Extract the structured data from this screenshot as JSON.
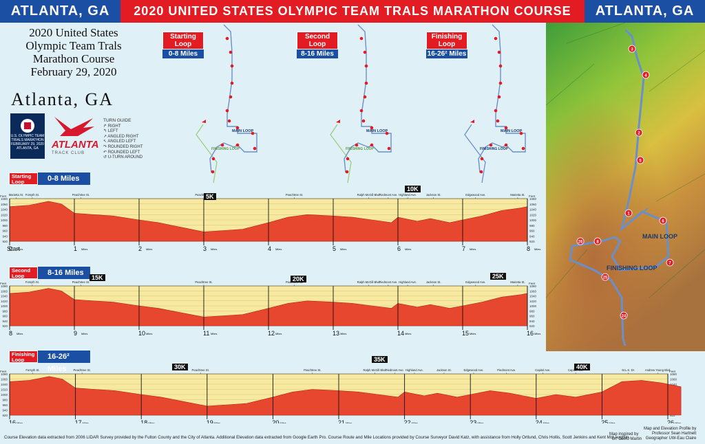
{
  "header": {
    "left": "ATLANTA, GA",
    "center": "2020 UNITED STATES OLYMPIC TEAM TRALS MARATHON COURSE",
    "right": "ATLANTA, GA"
  },
  "title_block": {
    "line1": "2020 United States",
    "line2": "Olympic Team Trals",
    "line3": "Marathon Course",
    "line4": "February 29, 2020"
  },
  "city": "Atlanta, GA",
  "logos": {
    "usopc": "U.S. OLYMPIC TEAM TRIALS MARATHON FEBRUARY 29, 2020 ATLANTA, GA",
    "atc_name": "ATLANTA",
    "atc_sub": "TRACK CLUB"
  },
  "turn_guide": {
    "title": "TURN GUIDE",
    "items": [
      "RIGHT",
      "LEFT",
      "ANGLED RIGHT",
      "ANGLED LEFT",
      "ROUNDED RIGHT",
      "ROUNDED LEFT",
      "U-TURN AROUND"
    ]
  },
  "loops": [
    {
      "name": "Starting Loop",
      "miles": "0-8 Miles"
    },
    {
      "name": "Second Loop",
      "miles": "8-16 Miles"
    },
    {
      "name": "Finishing Loop",
      "miles": "16-26² Miles"
    }
  ],
  "map_labels": {
    "main": "MAIN LOOP",
    "finish": "FINISHING LOOP",
    "mini_main": "MAIN LOOP",
    "mini_finish": "FINISHING LOOP"
  },
  "map_markers": [
    "3",
    "4",
    "2",
    "5",
    "1",
    "6",
    "26",
    "8",
    "7",
    "25",
    "24"
  ],
  "km_markers": {
    "p1": [
      "5K",
      "10K"
    ],
    "p2": [
      "15K",
      "20K",
      "25K"
    ],
    "p3": [
      "30K",
      "35K",
      "40K"
    ]
  },
  "colors": {
    "red": "#e31b23",
    "blue": "#1b4fa3",
    "fill": "#e8472f",
    "band": "#f7e9a0"
  },
  "chart_data": [
    {
      "type": "area",
      "title": "Starting Loop 0-8 Miles",
      "xlabel": "Miles",
      "ylabel": "Feet",
      "start_label": "Start",
      "x_ticks": [
        0,
        1,
        2,
        3,
        4,
        5,
        6,
        7,
        8
      ],
      "ylim": [
        920,
        1080
      ],
      "y_ticks": [
        920,
        940,
        960,
        980,
        1000,
        1020,
        1040,
        1060,
        1080
      ],
      "streets": [
        [
          "Marietta St.",
          0.1
        ],
        [
          "Forsyth St.",
          0.35
        ],
        [
          "Peachtree St.",
          1.1
        ],
        [
          "Peachtree St.",
          3.0
        ],
        [
          "Peachtree St.",
          4.4
        ],
        [
          "Ralph McGill Blvd.",
          5.55
        ],
        [
          "Piedmont Ave.",
          5.85
        ],
        [
          "Highland Ave.",
          6.15
        ],
        [
          "Jackson St.",
          6.55
        ],
        [
          "Edgewood Ave.",
          7.2
        ],
        [
          "Marietta St.",
          7.85
        ]
      ],
      "x": [
        0,
        0.3,
        0.6,
        0.8,
        1,
        1.3,
        1.6,
        2,
        2.3,
        2.6,
        3,
        3.3,
        3.6,
        4,
        4.3,
        4.6,
        5,
        5.3,
        5.6,
        5.9,
        6,
        6.3,
        6.5,
        6.8,
        7,
        7.3,
        7.6,
        7.9,
        8
      ],
      "y": [
        1050,
        1055,
        1070,
        1060,
        1025,
        1020,
        1015,
        1000,
        990,
        975,
        955,
        960,
        965,
        990,
        1010,
        1020,
        1015,
        1010,
        1000,
        990,
        1010,
        995,
        1005,
        990,
        1000,
        1015,
        1035,
        1045,
        1050
      ]
    },
    {
      "type": "area",
      "title": "Second Loop 8-16 Miles",
      "xlabel": "Miles",
      "ylabel": "Feet",
      "x_ticks": [
        8,
        9,
        10,
        11,
        12,
        13,
        14,
        15,
        16
      ],
      "ylim": [
        920,
        1080
      ],
      "y_ticks": [
        920,
        940,
        960,
        980,
        1000,
        1020,
        1040,
        1060,
        1080
      ],
      "streets": [
        [
          "Forsyth St.",
          0.35
        ],
        [
          "Peachtree St.",
          1.1
        ],
        [
          "Peachtree St.",
          3.0
        ],
        [
          "Peachtree St.",
          4.4
        ],
        [
          "Ralph McGill Blvd.",
          5.55
        ],
        [
          "Piedmont Ave.",
          5.85
        ],
        [
          "Highland Ave.",
          6.15
        ],
        [
          "Jackson St.",
          6.55
        ],
        [
          "Edgewood Ave.",
          7.2
        ],
        [
          "Marietta St.",
          7.85
        ]
      ],
      "x": [
        8,
        8.3,
        8.6,
        8.8,
        9,
        9.3,
        9.6,
        10,
        10.3,
        10.6,
        11,
        11.3,
        11.6,
        12,
        12.3,
        12.6,
        13,
        13.3,
        13.6,
        13.9,
        14,
        14.3,
        14.5,
        14.8,
        15,
        15.3,
        15.6,
        15.9,
        16
      ],
      "y": [
        1050,
        1055,
        1070,
        1060,
        1025,
        1020,
        1015,
        1000,
        990,
        975,
        955,
        960,
        965,
        990,
        1010,
        1020,
        1015,
        1010,
        1000,
        990,
        1010,
        995,
        1005,
        990,
        1000,
        1015,
        1035,
        1045,
        1050
      ]
    },
    {
      "type": "area",
      "title": "Finishing Loop 16-26.2 Miles",
      "xlabel": "Miles",
      "ylabel": "Feet",
      "x_ticks": [
        16,
        17,
        18,
        19,
        20,
        21,
        22,
        23,
        24,
        25,
        26
      ],
      "ylim": [
        920,
        1080
      ],
      "y_ticks": [
        920,
        940,
        960,
        980,
        1000,
        1020,
        1040,
        1060,
        1080
      ],
      "streets": [
        [
          "Forsyth St.",
          0.35
        ],
        [
          "Peachtree St.",
          1.1
        ],
        [
          "Peachtree St.",
          2.9
        ],
        [
          "Peachtree St.",
          4.6
        ],
        [
          "Ralph McGill Blvd.",
          5.55
        ],
        [
          "Piedmont Ave.",
          5.85
        ],
        [
          "Highland Ave.",
          6.15
        ],
        [
          "Jackson St.",
          6.6
        ],
        [
          "Edgewood Ave.",
          7.05
        ],
        [
          "Piedmont Ave.",
          7.55
        ],
        [
          "Capitol Ave.",
          8.1
        ],
        [
          "Capitol Ave.",
          8.6
        ],
        [
          "M.L.K. Dr.",
          9.4
        ],
        [
          "Andrew Young Blvd.",
          9.85
        ]
      ],
      "x": [
        16,
        16.3,
        16.6,
        16.8,
        17,
        17.3,
        17.6,
        18,
        18.3,
        18.6,
        19,
        19.3,
        19.6,
        20,
        20.3,
        20.6,
        21,
        21.3,
        21.6,
        21.9,
        22,
        22.3,
        22.5,
        22.8,
        23,
        23.3,
        23.6,
        24,
        24.3,
        24.6,
        25,
        25.3,
        25.6,
        25.9,
        26.2
      ],
      "y": [
        1050,
        1055,
        1070,
        1060,
        1025,
        1020,
        1015,
        1000,
        990,
        975,
        955,
        960,
        965,
        990,
        1010,
        1020,
        1015,
        1010,
        1000,
        990,
        1010,
        995,
        1005,
        990,
        1000,
        1015,
        1005,
        985,
        1000,
        990,
        1010,
        1050,
        1055,
        1045,
        1030
      ]
    }
  ],
  "footer": "Course Elevation data extracted from 2006 LIDAR Survey provided by the Fulton County and the City of Atlanta.  Additional Elevation data extracted from Google Earth Pro.  Course Route and Mile Locations provided by Course Surveyor David Katz, with assistance from Holly Ortlund, Chris Hollis, Scott Jenkins and Kent McLaughlin.",
  "credits": {
    "inspired": "Map inspired by",
    "inspired_by": "Dr. David Martin",
    "profile": "Map and Elevation Profile by",
    "profile_by": "Professor Sean Hartnett",
    "profile_role": "Geographer UW-Eau Claire"
  }
}
